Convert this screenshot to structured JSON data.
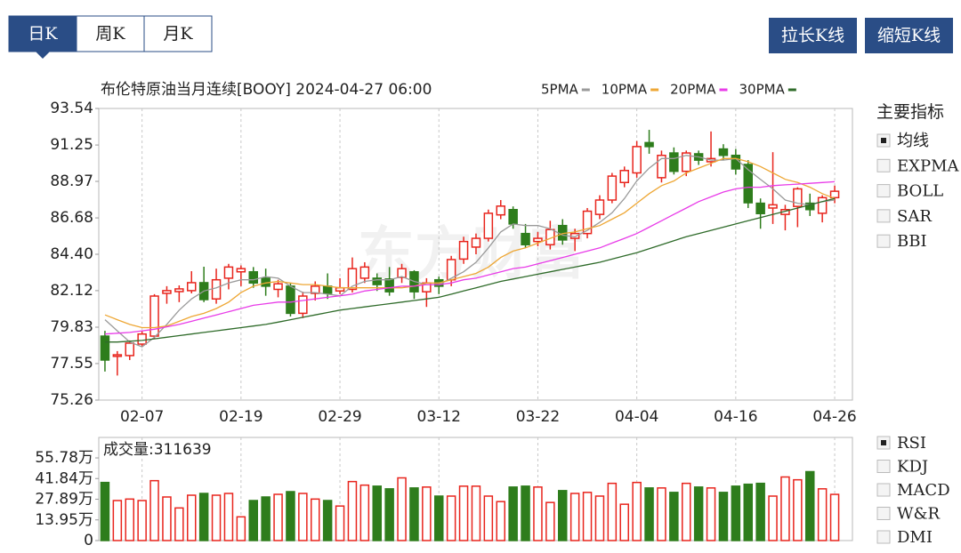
{
  "tabs": [
    "日K",
    "周K",
    "月K"
  ],
  "buttons": [
    "拉长K线",
    "缩短K线"
  ],
  "watermark": "东方财富",
  "indicators": {
    "title": "主要指标",
    "main": [
      {
        "label": "均线",
        "checked": true
      },
      {
        "label": "EXPMA",
        "checked": false
      },
      {
        "label": "BOLL",
        "checked": false
      },
      {
        "label": "SAR",
        "checked": false
      },
      {
        "label": "BBI",
        "checked": false
      }
    ],
    "sub": [
      {
        "label": "RSI",
        "checked": true
      },
      {
        "label": "KDJ",
        "checked": false
      },
      {
        "label": "MACD",
        "checked": false
      },
      {
        "label": "W&R",
        "checked": false
      },
      {
        "label": "DMI",
        "checked": false
      }
    ]
  },
  "chart_data": [
    {
      "type": "candlestick",
      "title": "布伦特原油当月连续[BOOY] 2024-04-27 06:00",
      "categories": [
        null,
        null,
        null,
        "02-07",
        null,
        null,
        null,
        null,
        null,
        null,
        null,
        "02-19",
        null,
        null,
        null,
        null,
        null,
        null,
        null,
        "02-29",
        null,
        null,
        null,
        null,
        null,
        null,
        null,
        "03-12",
        null,
        null,
        null,
        null,
        null,
        null,
        null,
        "03-22",
        null,
        null,
        null,
        null,
        null,
        null,
        null,
        "04-04",
        null,
        null,
        null,
        null,
        null,
        null,
        null,
        "04-16",
        null,
        null,
        null,
        null,
        null,
        null,
        null,
        "04-26"
      ],
      "open": [
        79.27,
        78.0,
        78.05,
        78.77,
        79.27,
        81.95,
        82.06,
        82.12,
        82.62,
        81.6,
        82.9,
        83.3,
        83.3,
        82.9,
        82.2,
        82.4,
        80.7,
        81.95,
        82.4,
        82.1,
        82.2,
        82.9,
        82.9,
        82.85,
        82.95,
        83.3,
        82.05,
        82.8,
        82.8,
        84.1,
        84.85,
        85.4,
        86.87,
        87.2,
        85.7,
        85.2,
        85.0,
        86.2,
        85.4,
        85.7,
        86.9,
        87.8,
        88.9,
        89.5,
        91.4,
        89.2,
        90.75,
        89.6,
        90.7,
        90.2,
        91.0,
        90.6,
        90.03,
        87.6,
        87.3,
        86.9,
        87.4,
        87.6,
        86.97,
        87.95
      ],
      "high": [
        79.6,
        78.33,
        79.0,
        79.6,
        81.9,
        82.4,
        82.45,
        83.34,
        83.62,
        83.5,
        83.8,
        83.7,
        83.6,
        83.5,
        82.8,
        82.6,
        82.05,
        82.7,
        83.2,
        82.9,
        84.2,
        83.9,
        83.2,
        83.6,
        83.8,
        83.4,
        82.9,
        83.0,
        84.3,
        85.5,
        85.7,
        87.2,
        87.8,
        87.4,
        86.3,
        85.8,
        86.5,
        86.6,
        86.0,
        87.3,
        88.1,
        89.5,
        89.9,
        91.5,
        92.2,
        90.9,
        91.1,
        90.9,
        90.9,
        92.1,
        91.3,
        91.0,
        90.3,
        87.9,
        90.8,
        87.5,
        88.6,
        88.2,
        88.1,
        88.7
      ],
      "low": [
        77.05,
        76.8,
        77.77,
        78.6,
        79.1,
        81.3,
        81.4,
        81.95,
        81.4,
        81.3,
        82.2,
        82.4,
        82.3,
        81.8,
        81.7,
        80.5,
        80.4,
        81.5,
        81.6,
        81.9,
        82.0,
        82.6,
        82.1,
        81.8,
        82.6,
        81.6,
        81.1,
        81.9,
        82.4,
        83.8,
        84.4,
        85.2,
        86.6,
        86.0,
        84.8,
        84.9,
        84.7,
        85.0,
        84.6,
        85.4,
        86.6,
        87.6,
        88.6,
        89.2,
        90.7,
        88.9,
        89.4,
        89.3,
        90.0,
        89.9,
        90.3,
        89.4,
        87.3,
        86.0,
        86.3,
        85.9,
        86.1,
        86.8,
        86.4,
        87.6
      ],
      "close": [
        77.77,
        78.1,
        78.83,
        79.4,
        81.78,
        82.12,
        82.23,
        82.62,
        81.56,
        82.8,
        83.6,
        83.5,
        82.6,
        82.4,
        82.55,
        80.7,
        81.78,
        82.4,
        81.95,
        82.3,
        83.5,
        83.6,
        82.5,
        82.05,
        83.5,
        82.05,
        82.6,
        82.4,
        84.07,
        85.2,
        85.4,
        86.97,
        87.42,
        86.3,
        85.0,
        85.4,
        85.95,
        85.3,
        85.7,
        87.1,
        87.8,
        89.3,
        89.65,
        91.15,
        91.15,
        90.6,
        89.6,
        90.75,
        90.3,
        90.4,
        90.6,
        89.75,
        87.63,
        86.95,
        87.5,
        87.2,
        88.5,
        87.2,
        87.95,
        88.35
      ],
      "up_color": "#e8251d",
      "down_color": "#2e7d1c",
      "series": [
        {
          "name": "5PMA",
          "color": "#9a9a9a",
          "values": [
            80.3,
            79.6,
            78.9,
            78.6,
            79.2,
            80.0,
            80.9,
            81.6,
            82.1,
            82.3,
            82.6,
            82.8,
            82.8,
            83.0,
            82.9,
            82.4,
            82.0,
            82.0,
            81.9,
            81.8,
            82.4,
            82.7,
            82.8,
            82.8,
            83.0,
            82.7,
            82.5,
            82.5,
            82.9,
            83.3,
            83.9,
            84.8,
            85.8,
            86.3,
            86.2,
            86.2,
            86.0,
            85.6,
            85.5,
            85.9,
            86.4,
            87.0,
            87.9,
            89.0,
            89.8,
            90.4,
            90.4,
            90.6,
            90.5,
            90.3,
            90.3,
            90.4,
            89.7,
            89.1,
            88.5,
            87.8,
            87.6,
            87.5,
            87.7,
            87.8
          ]
        },
        {
          "name": "10PMA",
          "color": "#eea735",
          "values": [
            80.6,
            80.3,
            80.0,
            79.8,
            79.8,
            79.9,
            80.2,
            80.5,
            80.7,
            81.0,
            81.4,
            82.0,
            82.4,
            82.6,
            82.7,
            82.6,
            82.5,
            82.5,
            82.4,
            82.3,
            82.3,
            82.3,
            82.3,
            82.3,
            82.3,
            82.4,
            82.6,
            82.6,
            82.8,
            83.0,
            83.2,
            83.6,
            84.2,
            84.6,
            84.8,
            85.1,
            85.4,
            85.7,
            85.8,
            86.0,
            86.2,
            86.6,
            87.0,
            87.6,
            88.2,
            88.7,
            89.0,
            89.5,
            89.8,
            90.1,
            90.4,
            90.4,
            90.2,
            89.9,
            89.5,
            89.1,
            88.9,
            88.6,
            88.2,
            87.9
          ]
        },
        {
          "name": "20PMA",
          "color": "#e83ce8",
          "values": [
            79.4,
            79.45,
            79.5,
            79.6,
            79.7,
            79.85,
            80.0,
            80.2,
            80.4,
            80.6,
            80.8,
            81.0,
            81.2,
            81.3,
            81.4,
            81.4,
            81.5,
            81.6,
            81.7,
            81.8,
            81.9,
            82.1,
            82.2,
            82.3,
            82.4,
            82.4,
            82.5,
            82.5,
            82.6,
            82.8,
            82.9,
            83.1,
            83.3,
            83.5,
            83.6,
            83.8,
            84.0,
            84.2,
            84.4,
            84.6,
            84.8,
            85.1,
            85.4,
            85.7,
            86.1,
            86.5,
            86.9,
            87.3,
            87.7,
            88.0,
            88.3,
            88.5,
            88.6,
            88.6,
            88.7,
            88.75,
            88.8,
            88.85,
            88.9,
            88.95
          ]
        },
        {
          "name": "30PMA",
          "color": "#2f6b2a",
          "values": [
            78.9,
            78.9,
            78.95,
            79.0,
            79.1,
            79.2,
            79.3,
            79.4,
            79.5,
            79.6,
            79.7,
            79.8,
            79.9,
            80.0,
            80.15,
            80.3,
            80.45,
            80.6,
            80.75,
            80.9,
            81.0,
            81.1,
            81.2,
            81.3,
            81.4,
            81.5,
            81.6,
            81.7,
            81.9,
            82.1,
            82.3,
            82.5,
            82.7,
            82.85,
            83.0,
            83.15,
            83.3,
            83.45,
            83.6,
            83.75,
            83.9,
            84.1,
            84.3,
            84.5,
            84.75,
            85.0,
            85.25,
            85.5,
            85.7,
            85.9,
            86.1,
            86.3,
            86.5,
            86.7,
            86.9,
            87.1,
            87.3,
            87.5,
            87.7,
            87.9
          ]
        }
      ],
      "ylim": [
        75.26,
        93.54
      ],
      "yticks": [
        93.54,
        91.25,
        88.97,
        86.68,
        {
          "value": 84.4,
          "label": "84.40"
        },
        82.12,
        79.83,
        77.55,
        75.26
      ],
      "xgrid": true
    },
    {
      "type": "bar",
      "title": "成交量:311639",
      "values": [
        39.2,
        27,
        28,
        27,
        40.4,
        29.4,
        22,
        30.6,
        31.8,
        30.6,
        31.8,
        16,
        27,
        29.4,
        31.2,
        33,
        31.8,
        28,
        27,
        23.3,
        39.8,
        37.4,
        36.7,
        34.9,
        42.3,
        35.5,
        36.1,
        30,
        30,
        36.7,
        36.7,
        30,
        26.3,
        36.1,
        36.7,
        36.1,
        25.7,
        33.7,
        31.8,
        32.5,
        30,
        38.6,
        24.5,
        39.2,
        35.5,
        35.5,
        32.5,
        38.6,
        36.1,
        35.5,
        32.5,
        36.7,
        38,
        38.6,
        30,
        42.9,
        41,
        46.5,
        34.9,
        31.16
      ],
      "ylim": [
        0,
        69.6
      ],
      "yticks": [
        {
          "value": 55.78,
          "label": "55.78万"
        },
        {
          "value": 41.84,
          "label": "41.84万"
        },
        {
          "value": 27.89,
          "label": "27.89万"
        },
        {
          "value": 13.95,
          "label": "13.95万"
        },
        0
      ]
    }
  ]
}
